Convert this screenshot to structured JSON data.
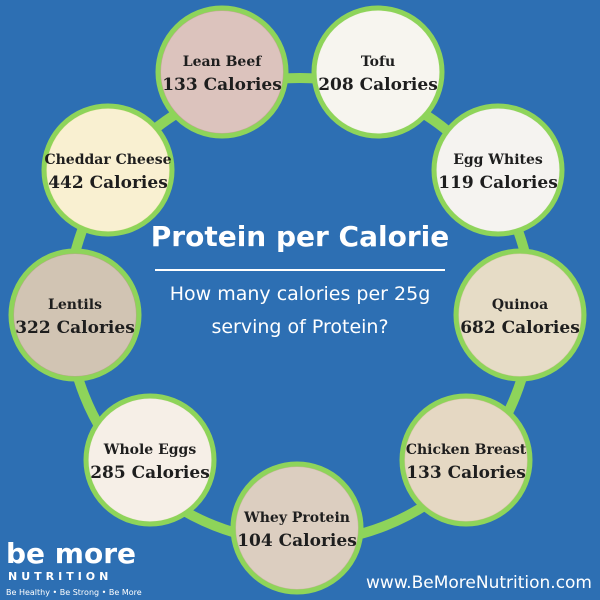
{
  "header": {
    "title": "Protein per Calorie",
    "subtitle_lines": [
      "How many calories per 25g",
      "serving of Protein?"
    ]
  },
  "items": [
    {
      "name": "Lean Beef",
      "calories": "133 Calories"
    },
    {
      "name": "Tofu",
      "calories": "208 Calories"
    },
    {
      "name": "Egg Whites",
      "calories": "119 Calories"
    },
    {
      "name": "Quinoa",
      "calories": "682 Calories"
    },
    {
      "name": "Chicken Breast",
      "calories": "133 Calories"
    },
    {
      "name": "Whey Protein",
      "calories": "104 Calories"
    },
    {
      "name": "Whole Eggs",
      "calories": "285 Calories"
    },
    {
      "name": "Lentils",
      "calories": "322 Calories"
    },
    {
      "name": "Cheddar Cheese",
      "calories": "442 Calories"
    }
  ],
  "logo": {
    "brand": "be more",
    "sub": "NUTRITION",
    "tagline": "Be Healthy • Be Strong • Be More"
  },
  "footer": {
    "url": "www.BeMoreNutrition.com"
  }
}
